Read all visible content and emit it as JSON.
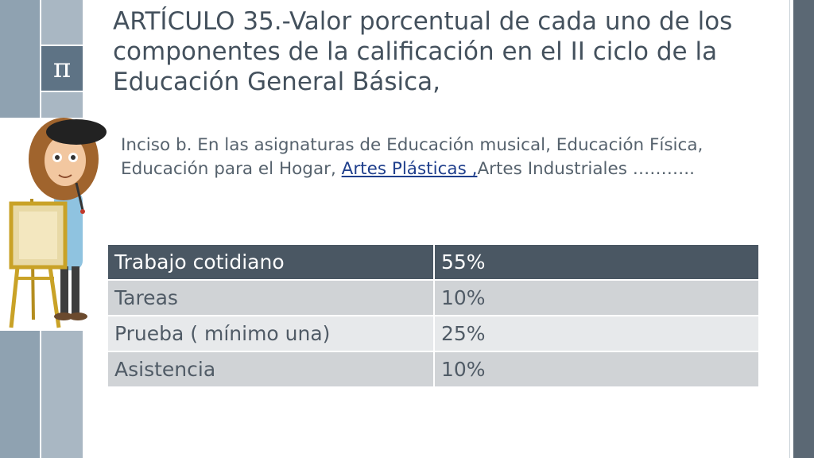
{
  "slide": {
    "pi_symbol": "π",
    "title": "ARTÍCULO 35.-Valor porcentual de cada uno de los componentes de la calificación en el II ciclo de la Educación General Básica,",
    "body": {
      "lead": "Inciso b.  En las asignaturas de   Educación musical, Educación Física, Educación para el Hogar, ",
      "link": "Artes Plásticas ,",
      "tail": "Artes Industriales ……….."
    },
    "table": {
      "header": [
        "Trabajo cotidiano",
        "55%"
      ],
      "rows": [
        [
          "Tareas",
          "10%"
        ],
        [
          "Prueba ( mínimo una)",
          "25%"
        ],
        [
          "Asistencia",
          "10%"
        ]
      ]
    }
  },
  "colors": {
    "accent_dark": "#4a5763",
    "strip_blue": "#8fa2b1",
    "link": "#1f3f8c"
  },
  "illustration": "painter-character-with-easel"
}
